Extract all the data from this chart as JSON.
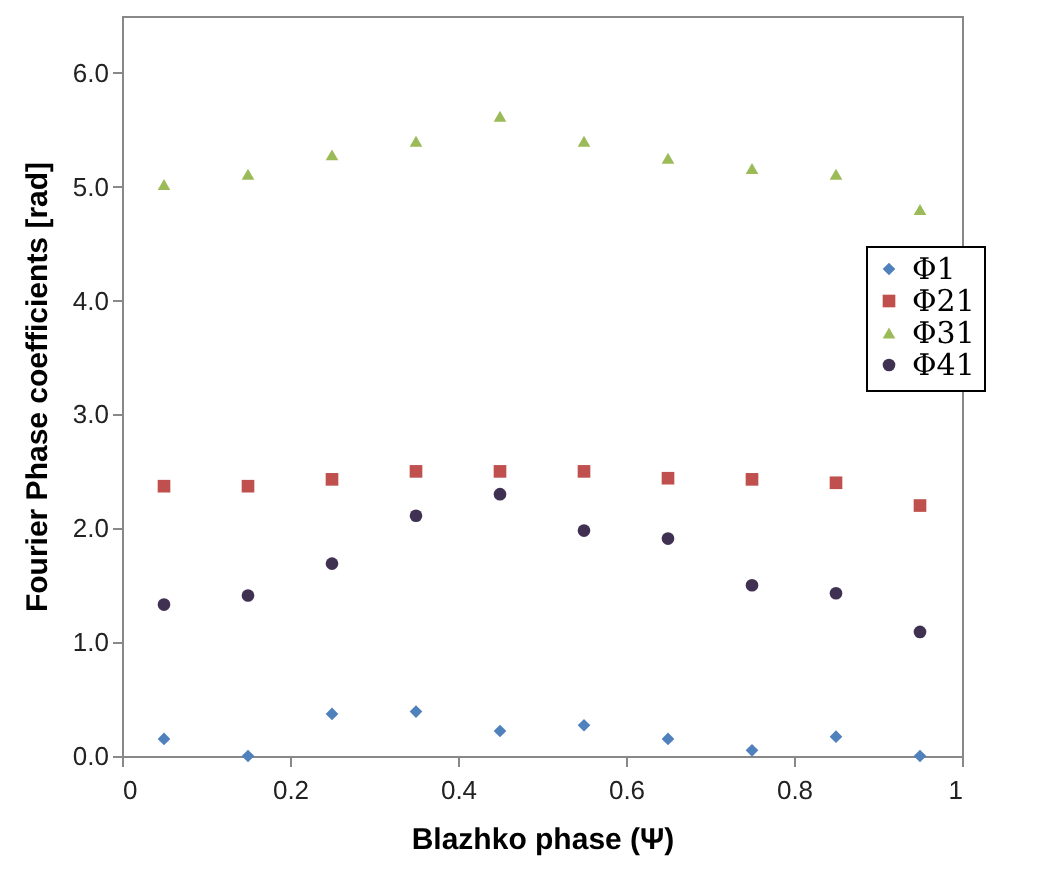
{
  "chart_data": {
    "type": "scatter",
    "xlabel": "Blazhko phase (Ψ)",
    "ylabel": "Fourier Phase coefficients [rad]",
    "x": [
      0.05,
      0.15,
      0.25,
      0.35,
      0.45,
      0.55,
      0.65,
      0.75,
      0.85,
      0.95
    ],
    "xlim": [
      0,
      1
    ],
    "xticks": [
      0,
      0.2,
      0.4,
      0.6,
      0.8,
      1
    ],
    "ylim": [
      0,
      6.5
    ],
    "yticks": [
      {
        "value": 0,
        "label": "0.0"
      },
      {
        "value": 1,
        "label": "1.0"
      },
      {
        "value": 2,
        "label": "2.0"
      },
      {
        "value": 3,
        "label": "3.0"
      },
      {
        "value": 4,
        "label": "4.0"
      },
      {
        "value": 5,
        "label": "5.0"
      },
      {
        "value": 6,
        "label": "6.0"
      }
    ],
    "grid": false,
    "legend": "right",
    "series": [
      {
        "name": "Φ1",
        "color": "#4f81bd",
        "marker": "diamond",
        "values": [
          0.15,
          0.0,
          0.37,
          0.39,
          0.22,
          0.27,
          0.15,
          0.05,
          0.17,
          0.0
        ]
      },
      {
        "name": "Φ21",
        "color": "#c0504d",
        "marker": "square",
        "values": [
          2.37,
          2.37,
          2.43,
          2.5,
          2.5,
          2.5,
          2.44,
          2.43,
          2.4,
          2.2
        ]
      },
      {
        "name": "Φ31",
        "color": "#9bbb59",
        "marker": "triangle",
        "values": [
          5.02,
          5.11,
          5.28,
          5.4,
          5.62,
          5.4,
          5.25,
          5.16,
          5.11,
          4.8
        ]
      },
      {
        "name": "Φ41",
        "color": "#403152",
        "marker": "circle",
        "values": [
          1.33,
          1.41,
          1.69,
          2.11,
          2.3,
          1.98,
          1.91,
          1.5,
          1.43,
          1.09
        ]
      }
    ]
  }
}
